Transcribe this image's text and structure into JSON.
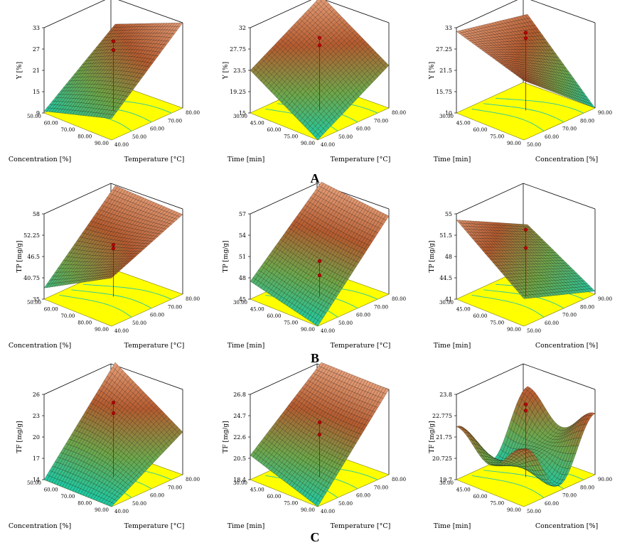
{
  "figure": {
    "row_labels": [
      "A",
      "B",
      "C"
    ]
  },
  "colors": {
    "floor": "#FFFF00",
    "contour": "#22C7A9",
    "surface_low": "#1FC9A6",
    "surface_mid": "#6FA64A",
    "surface_high": "#B65B2E",
    "surface_top": "#E7A07A",
    "grid_line": "#000000",
    "design_point": "#C00000"
  },
  "chart_data": [
    {
      "type": "surface3d",
      "row": "A",
      "ylabel": "Y [%]",
      "xlabel": "Concentration [%]",
      "zlabel": "Temperature [°C]",
      "z_ticks": [
        "9",
        "15",
        "21",
        "27",
        "33"
      ],
      "zlim": [
        9,
        33
      ],
      "x_ticks": [
        "50.00",
        "60.00",
        "70.00",
        "80.00",
        "90.00"
      ],
      "y_ticks": [
        "40.00",
        "50.00",
        "60.00",
        "70.00",
        "80.00"
      ],
      "corners": {
        "front": 15,
        "left": 9.5,
        "right": 33,
        "back": 25
      },
      "center_bump": 3,
      "design_points": [
        28.5,
        26
      ]
    },
    {
      "type": "surface3d",
      "row": "A",
      "ylabel": "Y [%]",
      "xlabel": "Time [min]",
      "zlabel": "Temperature [°C]",
      "z_ticks": [
        "15",
        "19.25",
        "23.5",
        "27.75",
        "32"
      ],
      "zlim": [
        15,
        32
      ],
      "x_ticks": [
        "30.00",
        "45.00",
        "60.00",
        "75.00",
        "90.00"
      ],
      "y_ticks": [
        "40.00",
        "50.00",
        "60.00",
        "70.00",
        "80.00"
      ],
      "corners": {
        "front": 15,
        "left": 23.5,
        "right": 23.5,
        "back": 32
      },
      "center_bump": 2,
      "design_points": [
        29.5,
        28
      ]
    },
    {
      "type": "surface3d",
      "row": "A",
      "ylabel": "Y [%]",
      "xlabel": "Time [min]",
      "zlabel": "Concentration [%]",
      "z_ticks": [
        "10",
        "15.75",
        "21.5",
        "27.25",
        "33"
      ],
      "zlim": [
        10,
        33
      ],
      "x_ticks": [
        "30.00",
        "45.00",
        "60.00",
        "75.00",
        "90.00"
      ],
      "y_ticks": [
        "50.00",
        "60.00",
        "70.00",
        "80.00",
        "90.00"
      ],
      "corners": {
        "front": 26,
        "left": 32,
        "right": 10,
        "back": 28
      },
      "center_bump": 1,
      "design_points": [
        31,
        29.5
      ]
    },
    {
      "type": "surface3d",
      "row": "B",
      "ylabel": "TP [mg/g]",
      "xlabel": "Concentration [%]",
      "zlabel": "Temperature [°C]",
      "z_ticks": [
        "35",
        "40.75",
        "46.5",
        "52.25",
        "58"
      ],
      "zlim": [
        35,
        58
      ],
      "x_ticks": [
        "50.00",
        "60.00",
        "70.00",
        "80.00",
        "90.00"
      ],
      "y_ticks": [
        "40.00",
        "50.00",
        "60.00",
        "70.00",
        "80.00"
      ],
      "corners": {
        "front": 48,
        "left": 38,
        "right": 56.5,
        "back": 57
      },
      "center_bump": -2,
      "design_points": [
        49,
        48
      ]
    },
    {
      "type": "surface3d",
      "row": "B",
      "ylabel": "TP [mg/g]",
      "xlabel": "Time [min]",
      "zlabel": "Temperature [°C]",
      "z_ticks": [
        "45",
        "48",
        "51",
        "54",
        "57"
      ],
      "zlim": [
        45,
        57
      ],
      "x_ticks": [
        "30.00",
        "45.00",
        "60.00",
        "75.00",
        "90.00"
      ],
      "y_ticks": [
        "40.00",
        "50.00",
        "60.00",
        "70.00",
        "80.00"
      ],
      "corners": {
        "front": 45,
        "left": 47.5,
        "right": 56,
        "back": 57
      },
      "center_bump": -1,
      "design_points": [
        50,
        48
      ]
    },
    {
      "type": "surface3d",
      "row": "B",
      "ylabel": "TP [mg/g]",
      "xlabel": "Time [min]",
      "zlabel": "Concentration [%]",
      "z_ticks": [
        "41",
        "44.5",
        "48",
        "51.5",
        "55"
      ],
      "zlim": [
        41,
        55
      ],
      "x_ticks": [
        "30.00",
        "45.00",
        "60.00",
        "75.00",
        "90.00"
      ],
      "y_ticks": [
        "50.00",
        "60.00",
        "70.00",
        "80.00",
        "90.00"
      ],
      "corners": {
        "front": 45.5,
        "left": 54,
        "right": 41.5,
        "back": 48
      },
      "center_bump": 0,
      "design_points": [
        52,
        49
      ]
    },
    {
      "type": "surface3d",
      "row": "C",
      "ylabel": "TF [mg/g]",
      "xlabel": "Concentration [%]",
      "zlabel": "Temperature [°C]",
      "z_ticks": [
        "14",
        "17",
        "20",
        "23",
        "26"
      ],
      "zlim": [
        14,
        26
      ],
      "x_ticks": [
        "50.00",
        "60.00",
        "70.00",
        "80.00",
        "90.00"
      ],
      "y_ticks": [
        "40.00",
        "50.00",
        "60.00",
        "70.00",
        "80.00"
      ],
      "corners": {
        "front": 14,
        "left": 14,
        "right": 20,
        "back": 26
      },
      "center_bump": 3,
      "design_points": [
        24.5,
        23
      ]
    },
    {
      "type": "surface3d",
      "row": "C",
      "ylabel": "TF [mg/g]",
      "xlabel": "Time [min]",
      "zlabel": "Temperature [°C]",
      "z_ticks": [
        "18.4",
        "20.5",
        "22.6",
        "24.7",
        "26.8"
      ],
      "zlim": [
        18.4,
        26.8
      ],
      "x_ticks": [
        "30.00",
        "45.00",
        "60.00",
        "75.00",
        "90.00"
      ],
      "y_ticks": [
        "40.00",
        "50.00",
        "60.00",
        "70.00",
        "80.00"
      ],
      "corners": {
        "front": 18.4,
        "left": 20.8,
        "right": 26.8,
        "back": 26.8
      },
      "center_bump": -1.2,
      "design_points": [
        23.8,
        22.6
      ]
    },
    {
      "type": "surface3d",
      "row": "C",
      "ylabel": "TF [mg/g]",
      "xlabel": "Time [min]",
      "zlabel": "Concentration [%]",
      "z_ticks": [
        "19.7",
        "20.725",
        "21.75",
        "22.775",
        "23.8"
      ],
      "zlim": [
        19.7,
        23.8
      ],
      "x_ticks": [
        "30.00",
        "45.00",
        "60.00",
        "75.00",
        "90.00"
      ],
      "y_ticks": [
        "50.00",
        "60.00",
        "70.00",
        "80.00",
        "90.00"
      ],
      "corners": {
        "front": 21.8,
        "left": 21.6,
        "right": 22.0,
        "back": 22.0
      },
      "center_bump": -2.2,
      "saddle": 2.6,
      "design_points": [
        23.2,
        22.9
      ]
    }
  ]
}
